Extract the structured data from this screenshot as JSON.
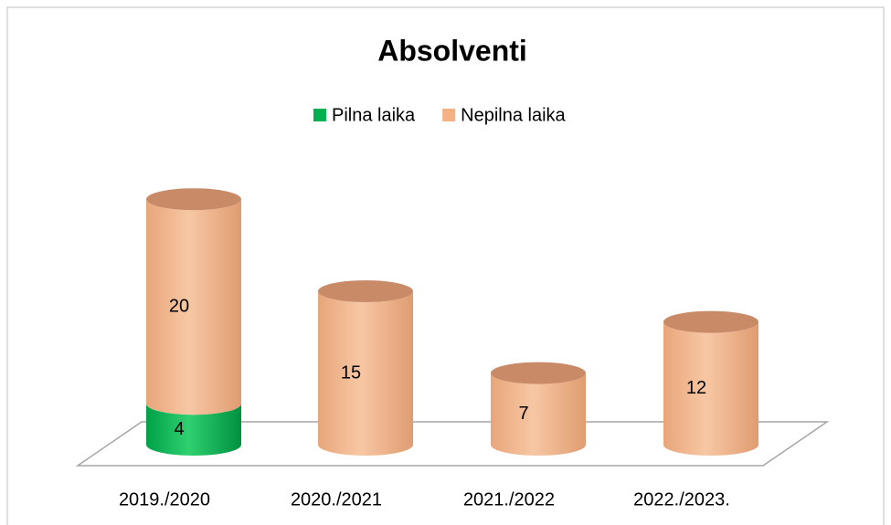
{
  "chart_data": {
    "type": "bar3d_stacked_cylinder",
    "title": "Absolventi",
    "categories": [
      "2019./2020",
      "2020./2021",
      "2021./2022",
      "2022./2023."
    ],
    "series": [
      {
        "name": "Pilna laika",
        "color": "#00b050",
        "values": [
          4,
          null,
          null,
          null
        ]
      },
      {
        "name": "Nepilna laika",
        "color": "#f4b183",
        "values": [
          20,
          15,
          7,
          12
        ]
      }
    ],
    "legend": "top"
  }
}
